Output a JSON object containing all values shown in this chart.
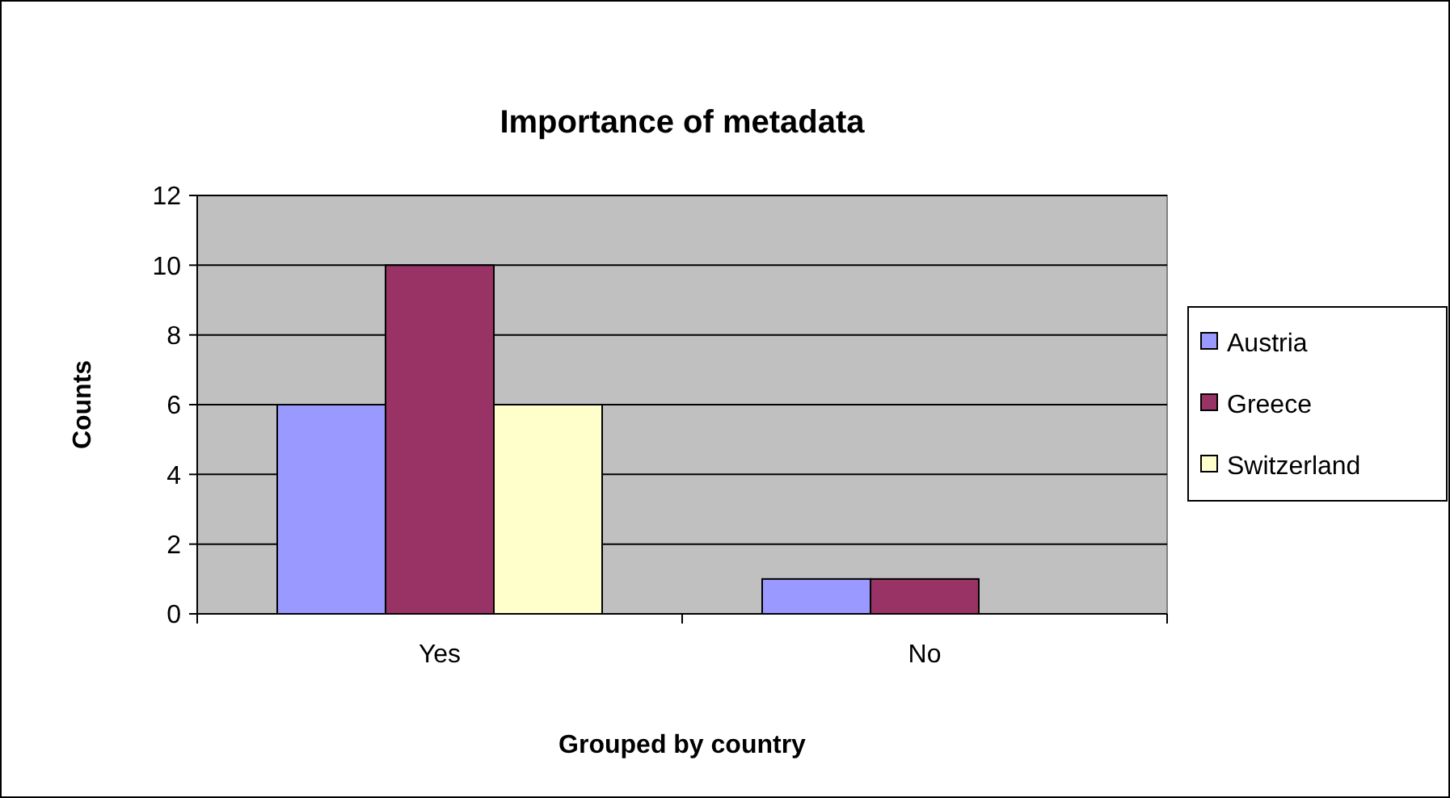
{
  "chart_data": {
    "type": "bar",
    "title": "Importance of metadata",
    "xlabel": "Grouped by country",
    "ylabel": "Counts",
    "categories": [
      "Yes",
      "No"
    ],
    "series": [
      {
        "name": "Austria",
        "color": "#9999ff",
        "values": [
          6,
          1
        ]
      },
      {
        "name": "Greece",
        "color": "#993366",
        "values": [
          10,
          1
        ]
      },
      {
        "name": "Switzerland",
        "color": "#ffffcc",
        "values": [
          6,
          0
        ]
      }
    ],
    "ylim": [
      0,
      12
    ],
    "yticks": [
      0,
      2,
      4,
      6,
      8,
      10,
      12
    ],
    "grid": "y",
    "legend": "right"
  }
}
